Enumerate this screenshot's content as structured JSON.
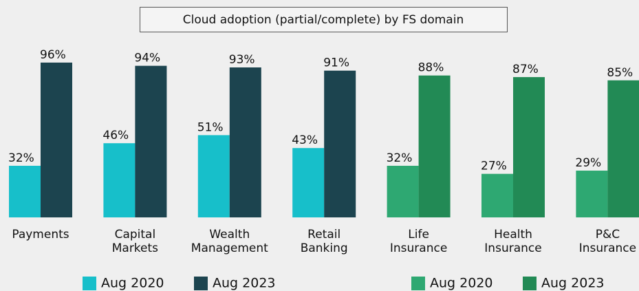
{
  "chart_data": [
    {
      "type": "bar",
      "title": "Cloud adoption (partial/complete) by FS domain",
      "categories": [
        "Payments",
        "Capital\nMarkets",
        "Wealth\nManagement",
        "Retail\nBanking"
      ],
      "ylim": [
        0,
        100
      ],
      "series": [
        {
          "name": "Aug 2020",
          "color": "#17bfca",
          "values": [
            32,
            46,
            51,
            43
          ],
          "value_labels": [
            "32%",
            "46%",
            "51%",
            "43%"
          ]
        },
        {
          "name": "Aug 2023",
          "color": "#1c444f",
          "values": [
            96,
            94,
            93,
            91
          ],
          "value_labels": [
            "96%",
            "94%",
            "93%",
            "91%"
          ]
        }
      ]
    },
    {
      "type": "bar",
      "categories": [
        "Life\nInsurance",
        "Health\nInsurance",
        "P&C\nInsurance"
      ],
      "ylim": [
        0,
        100
      ],
      "series": [
        {
          "name": "Aug 2020",
          "color": "#2ea872",
          "values": [
            32,
            27,
            29
          ],
          "value_labels": [
            "32%",
            "27%",
            "29%"
          ]
        },
        {
          "name": "Aug 2023",
          "color": "#228a55",
          "values": [
            88,
            87,
            85
          ],
          "value_labels": [
            "88%",
            "87%",
            "85%"
          ]
        }
      ]
    }
  ]
}
